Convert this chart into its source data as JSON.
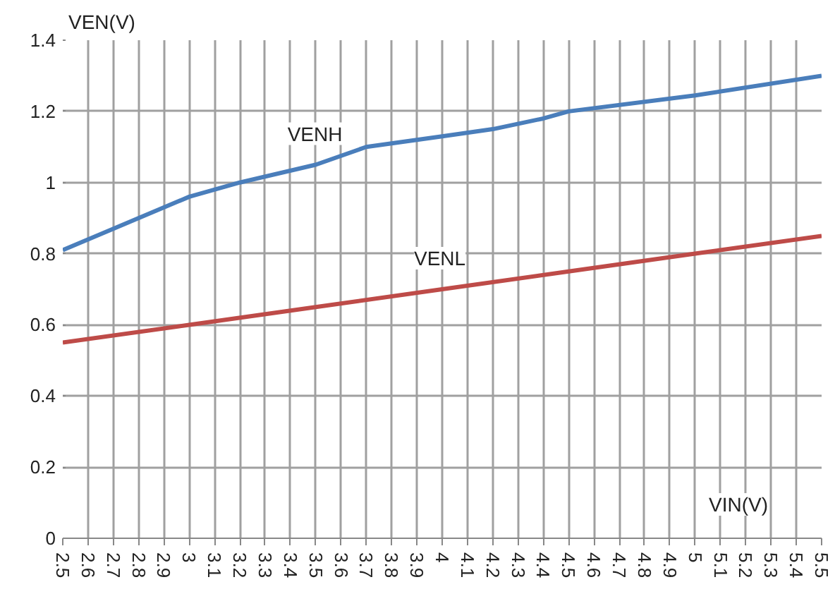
{
  "chart_data": {
    "type": "line",
    "xlabel": "VIN(V)",
    "ylabel": "VEN(V)",
    "x": [
      2.5,
      2.7,
      3.0,
      3.2,
      3.5,
      3.7,
      4.0,
      4.2,
      4.4,
      4.5,
      5.0,
      5.5
    ],
    "series": [
      {
        "name": "VENH",
        "color": "#4a7ebb",
        "values": [
          0.81,
          0.87,
          0.96,
          1.0,
          1.05,
          1.1,
          1.13,
          1.15,
          1.18,
          1.2,
          1.245,
          1.3
        ]
      },
      {
        "name": "VENL",
        "color": "#be4b48",
        "x": [
          2.5,
          3.0,
          3.5,
          4.0,
          4.5,
          5.0,
          5.5
        ],
        "values": [
          0.55,
          0.6,
          0.65,
          0.7,
          0.75,
          0.8,
          0.85
        ]
      }
    ],
    "xlim": [
      2.5,
      5.5
    ],
    "ylim": [
      0,
      1.4
    ],
    "xticks": [
      2.5,
      2.6,
      2.7,
      2.8,
      2.9,
      3,
      3.1,
      3.2,
      3.3,
      3.4,
      3.5,
      3.6,
      3.7,
      3.8,
      3.9,
      4,
      4.1,
      4.2,
      4.3,
      4.4,
      4.5,
      4.6,
      4.7,
      4.8,
      4.9,
      5,
      5.1,
      5.2,
      5.3,
      5.4,
      5.5
    ],
    "yticks": [
      0,
      0.2,
      0.4,
      0.6,
      0.8,
      1,
      1.2,
      1.4
    ],
    "grid": true,
    "legend": false,
    "marker": "none",
    "line_style": "solid"
  }
}
